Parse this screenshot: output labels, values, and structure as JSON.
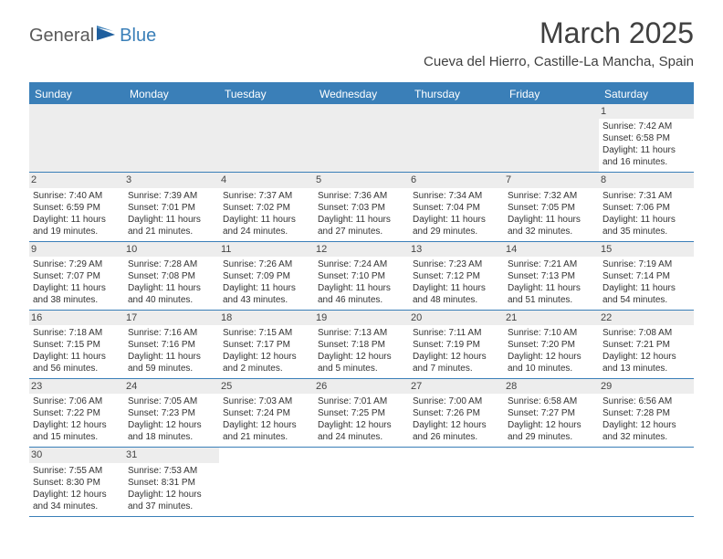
{
  "logo": {
    "text1": "General",
    "text2": "Blue"
  },
  "title": "March 2025",
  "location": "Cueva del Hierro, Castille-La Mancha, Spain",
  "colors": {
    "header_bar": "#3a7fb8",
    "dayname_text": "#ffffff",
    "daynum_bg": "#ededed",
    "cell_text": "#333333",
    "title_text": "#404040",
    "logo_gray": "#5a5a5a",
    "logo_blue": "#3a7fb8",
    "border": "#3a7fb8"
  },
  "daynames": [
    "Sunday",
    "Monday",
    "Tuesday",
    "Wednesday",
    "Thursday",
    "Friday",
    "Saturday"
  ],
  "weeks": [
    [
      null,
      null,
      null,
      null,
      null,
      null,
      {
        "n": "1",
        "sr": "7:42 AM",
        "ss": "6:58 PM",
        "dl": "11 hours and 16 minutes."
      }
    ],
    [
      {
        "n": "2",
        "sr": "7:40 AM",
        "ss": "6:59 PM",
        "dl": "11 hours and 19 minutes."
      },
      {
        "n": "3",
        "sr": "7:39 AM",
        "ss": "7:01 PM",
        "dl": "11 hours and 21 minutes."
      },
      {
        "n": "4",
        "sr": "7:37 AM",
        "ss": "7:02 PM",
        "dl": "11 hours and 24 minutes."
      },
      {
        "n": "5",
        "sr": "7:36 AM",
        "ss": "7:03 PM",
        "dl": "11 hours and 27 minutes."
      },
      {
        "n": "6",
        "sr": "7:34 AM",
        "ss": "7:04 PM",
        "dl": "11 hours and 29 minutes."
      },
      {
        "n": "7",
        "sr": "7:32 AM",
        "ss": "7:05 PM",
        "dl": "11 hours and 32 minutes."
      },
      {
        "n": "8",
        "sr": "7:31 AM",
        "ss": "7:06 PM",
        "dl": "11 hours and 35 minutes."
      }
    ],
    [
      {
        "n": "9",
        "sr": "7:29 AM",
        "ss": "7:07 PM",
        "dl": "11 hours and 38 minutes."
      },
      {
        "n": "10",
        "sr": "7:28 AM",
        "ss": "7:08 PM",
        "dl": "11 hours and 40 minutes."
      },
      {
        "n": "11",
        "sr": "7:26 AM",
        "ss": "7:09 PM",
        "dl": "11 hours and 43 minutes."
      },
      {
        "n": "12",
        "sr": "7:24 AM",
        "ss": "7:10 PM",
        "dl": "11 hours and 46 minutes."
      },
      {
        "n": "13",
        "sr": "7:23 AM",
        "ss": "7:12 PM",
        "dl": "11 hours and 48 minutes."
      },
      {
        "n": "14",
        "sr": "7:21 AM",
        "ss": "7:13 PM",
        "dl": "11 hours and 51 minutes."
      },
      {
        "n": "15",
        "sr": "7:19 AM",
        "ss": "7:14 PM",
        "dl": "11 hours and 54 minutes."
      }
    ],
    [
      {
        "n": "16",
        "sr": "7:18 AM",
        "ss": "7:15 PM",
        "dl": "11 hours and 56 minutes."
      },
      {
        "n": "17",
        "sr": "7:16 AM",
        "ss": "7:16 PM",
        "dl": "11 hours and 59 minutes."
      },
      {
        "n": "18",
        "sr": "7:15 AM",
        "ss": "7:17 PM",
        "dl": "12 hours and 2 minutes."
      },
      {
        "n": "19",
        "sr": "7:13 AM",
        "ss": "7:18 PM",
        "dl": "12 hours and 5 minutes."
      },
      {
        "n": "20",
        "sr": "7:11 AM",
        "ss": "7:19 PM",
        "dl": "12 hours and 7 minutes."
      },
      {
        "n": "21",
        "sr": "7:10 AM",
        "ss": "7:20 PM",
        "dl": "12 hours and 10 minutes."
      },
      {
        "n": "22",
        "sr": "7:08 AM",
        "ss": "7:21 PM",
        "dl": "12 hours and 13 minutes."
      }
    ],
    [
      {
        "n": "23",
        "sr": "7:06 AM",
        "ss": "7:22 PM",
        "dl": "12 hours and 15 minutes."
      },
      {
        "n": "24",
        "sr": "7:05 AM",
        "ss": "7:23 PM",
        "dl": "12 hours and 18 minutes."
      },
      {
        "n": "25",
        "sr": "7:03 AM",
        "ss": "7:24 PM",
        "dl": "12 hours and 21 minutes."
      },
      {
        "n": "26",
        "sr": "7:01 AM",
        "ss": "7:25 PM",
        "dl": "12 hours and 24 minutes."
      },
      {
        "n": "27",
        "sr": "7:00 AM",
        "ss": "7:26 PM",
        "dl": "12 hours and 26 minutes."
      },
      {
        "n": "28",
        "sr": "6:58 AM",
        "ss": "7:27 PM",
        "dl": "12 hours and 29 minutes."
      },
      {
        "n": "29",
        "sr": "6:56 AM",
        "ss": "7:28 PM",
        "dl": "12 hours and 32 minutes."
      }
    ],
    [
      {
        "n": "30",
        "sr": "7:55 AM",
        "ss": "8:30 PM",
        "dl": "12 hours and 34 minutes."
      },
      {
        "n": "31",
        "sr": "7:53 AM",
        "ss": "8:31 PM",
        "dl": "12 hours and 37 minutes."
      },
      null,
      null,
      null,
      null,
      null
    ]
  ],
  "labels": {
    "sunrise": "Sunrise:",
    "sunset": "Sunset:",
    "daylight": "Daylight:"
  }
}
